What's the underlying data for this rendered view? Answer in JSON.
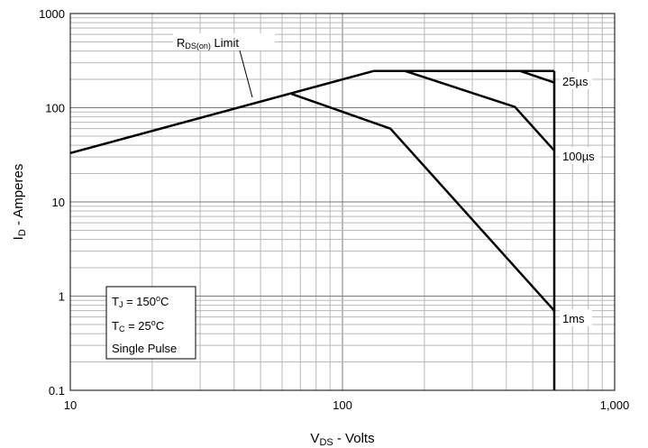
{
  "chart_data": {
    "type": "line",
    "x_scale": "log",
    "y_scale": "log",
    "xlim": [
      10,
      1000
    ],
    "ylim": [
      0.1,
      1000
    ],
    "xlabel": {
      "main": "V",
      "sub": "DS",
      "rest": " - Volts"
    },
    "ylabel": {
      "main": "I",
      "sub": "D",
      "rest": " - Amperes"
    },
    "x_ticks": [
      {
        "value": 10,
        "label": "10"
      },
      {
        "value": 100,
        "label": "100"
      },
      {
        "value": 1000,
        "label": "1,000"
      }
    ],
    "y_ticks": [
      {
        "value": 0.1,
        "label": "0.1"
      },
      {
        "value": 1,
        "label": "1"
      },
      {
        "value": 10,
        "label": "10"
      },
      {
        "value": 100,
        "label": "100"
      },
      {
        "value": 1000,
        "label": "1000"
      }
    ],
    "grid": true,
    "series": [
      {
        "name": "RDS(on) Limit",
        "points": [
          [
            10,
            33
          ],
          [
            130,
            245
          ]
        ]
      },
      {
        "name": "25µs",
        "points": [
          [
            130,
            245
          ],
          [
            600,
            245
          ]
        ]
      },
      {
        "name": "25µs",
        "points": [
          [
            450,
            245
          ],
          [
            600,
            185
          ]
        ]
      },
      {
        "name": "100µs",
        "points": [
          [
            170,
            245
          ],
          [
            430,
            102
          ],
          [
            600,
            35
          ]
        ]
      },
      {
        "name": "1ms",
        "points": [
          [
            65,
            140
          ],
          [
            150,
            60
          ],
          [
            600,
            0.7
          ]
        ]
      },
      {
        "name": "",
        "points": [
          [
            600,
            0.1
          ],
          [
            600,
            245
          ]
        ]
      }
    ],
    "annotations": {
      "rds_limit": {
        "main": "R",
        "sub": "DS(on)",
        "rest": " Limit"
      },
      "pulse_25us": "25µs",
      "pulse_100us": "100µs",
      "pulse_1ms": "1ms"
    },
    "conditions": {
      "tj": {
        "main": "T",
        "sub": "J",
        "rest": " = 150",
        "sup": "o",
        "unit": "C"
      },
      "tc": {
        "main": "T",
        "sub": "C",
        "rest": " = 25",
        "sup": "o",
        "unit": "C"
      },
      "pulse": "Single Pulse"
    }
  }
}
